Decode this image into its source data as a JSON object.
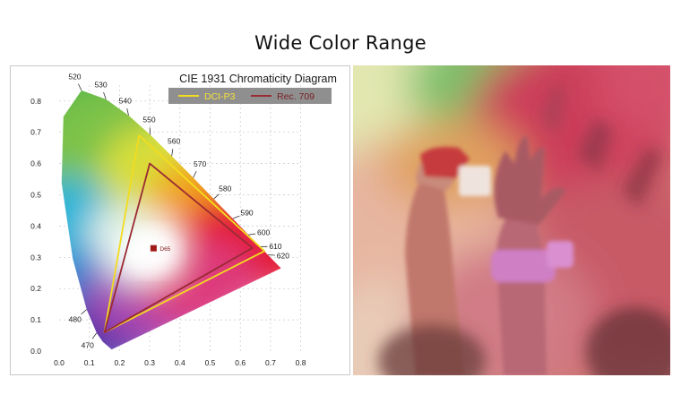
{
  "page": {
    "title": "Wide Color Range"
  },
  "chart_data": {
    "type": "scatter",
    "title": "CIE 1931 Chromaticity Diagram",
    "xlim": [
      0.0,
      0.8
    ],
    "ylim": [
      0.0,
      0.85
    ],
    "x_ticks": [
      "0.0",
      "0.1",
      "0.2",
      "0.3",
      "0.4",
      "0.5",
      "0.6",
      "0.7",
      "0.8"
    ],
    "y_ticks": [
      "0.0",
      "0.1",
      "0.2",
      "0.3",
      "0.4",
      "0.5",
      "0.6",
      "0.7",
      "0.8"
    ],
    "grid": true,
    "legend_position": "top-right",
    "locus_labels": [
      {
        "label": "470",
        "x": 0.124,
        "y": 0.058
      },
      {
        "label": "480",
        "x": 0.091,
        "y": 0.133
      },
      {
        "label": "520",
        "x": 0.074,
        "y": 0.834
      },
      {
        "label": "530",
        "x": 0.155,
        "y": 0.806
      },
      {
        "label": "540",
        "x": 0.23,
        "y": 0.754
      },
      {
        "label": "550",
        "x": 0.302,
        "y": 0.692
      },
      {
        "label": "560",
        "x": 0.373,
        "y": 0.624
      },
      {
        "label": "570",
        "x": 0.444,
        "y": 0.555
      },
      {
        "label": "580",
        "x": 0.512,
        "y": 0.487
      },
      {
        "label": "590",
        "x": 0.575,
        "y": 0.424
      },
      {
        "label": "600",
        "x": 0.627,
        "y": 0.372
      },
      {
        "label": "610",
        "x": 0.666,
        "y": 0.334
      },
      {
        "label": "620",
        "x": 0.691,
        "y": 0.308
      }
    ],
    "white_point": {
      "label": "D65",
      "x": 0.3127,
      "y": 0.329,
      "color": "#a01818"
    },
    "series": [
      {
        "name": "DCI-P3",
        "color": "#f2dc1e",
        "points": [
          {
            "x": 0.68,
            "y": 0.32
          },
          {
            "x": 0.265,
            "y": 0.69
          },
          {
            "x": 0.15,
            "y": 0.06
          }
        ]
      },
      {
        "name": "Rec. 709",
        "color": "#9a2a34",
        "points": [
          {
            "x": 0.64,
            "y": 0.33
          },
          {
            "x": 0.3,
            "y": 0.6
          },
          {
            "x": 0.15,
            "y": 0.06
          }
        ]
      }
    ]
  },
  "photo": {
    "subject": "crowd-with-raised-hands-in-color-powder"
  }
}
